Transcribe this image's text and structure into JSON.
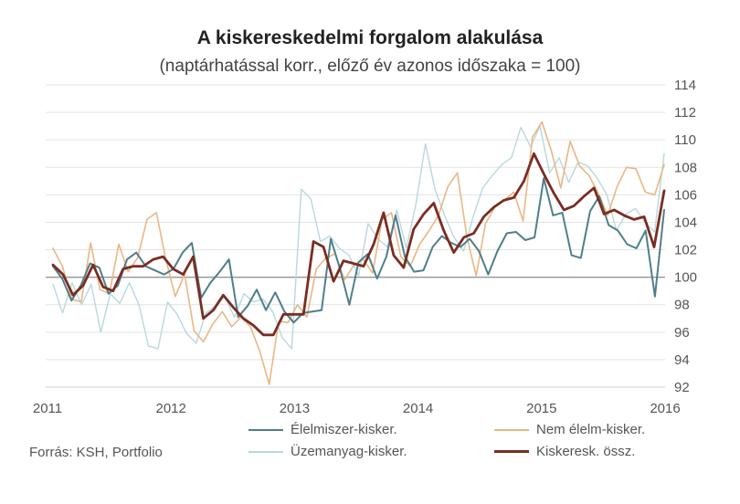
{
  "title": "A kiskereskedelmi forgalom alakulása",
  "subtitle": "(naptárhatással korr., előző év azonos időszaka = 100)",
  "source": "Forrás: KSH, Portfolio",
  "chart_data": {
    "type": "line",
    "ylim": [
      92,
      114
    ],
    "yticks": [
      "114",
      "112",
      "110",
      "108",
      "106",
      "104",
      "102",
      "100",
      "98",
      "96",
      "94",
      "92"
    ],
    "xticks": [
      "2011",
      "2012",
      "2013",
      "2014",
      "2015",
      "2016"
    ],
    "grid": true,
    "legend_position": "bottom",
    "series": [
      {
        "name": "Élelmiszer-kisker.",
        "color": "#4f7f8a",
        "width": 2,
        "values": [
          100.8,
          99.9,
          98.3,
          99.4,
          101.0,
          100.7,
          98.8,
          99.4,
          101.3,
          101.8,
          100.8,
          100.5,
          100.2,
          100.6,
          101.8,
          102.5,
          98.5,
          99.6,
          100.4,
          101.3,
          97.1,
          97.9,
          99.1,
          97.6,
          98.9,
          97.5,
          96.7,
          97.4,
          97.5,
          97.6,
          102.8,
          100.6,
          98.0,
          101.1,
          101.7,
          99.9,
          101.5,
          104.5,
          101.5,
          100.4,
          100.5,
          102.2,
          103.0,
          102.5,
          102.2,
          102.8,
          101.9,
          100.2,
          101.9,
          103.2,
          103.3,
          102.7,
          102.9,
          107.2,
          104.5,
          104.7,
          101.6,
          101.4,
          104.8,
          105.9,
          103.8,
          103.4,
          102.4,
          102.1,
          103.4,
          98.6,
          104.9
        ]
      },
      {
        "name": "Nem élelm-kisker.",
        "color": "#e9b784",
        "width": 1.6,
        "values": [
          102.1,
          100.8,
          98.4,
          98.2,
          102.5,
          99.1,
          98.8,
          102.4,
          100.4,
          101.4,
          104.2,
          104.7,
          101.3,
          98.6,
          100.2,
          96.1,
          95.3,
          96.6,
          97.5,
          96.4,
          97.1,
          96.4,
          94.6,
          92.2,
          96.8,
          96.7,
          98.0,
          97.1,
          100.6,
          101.4,
          101.7,
          99.8,
          100.9,
          101.3,
          100.3,
          104.2,
          104.7,
          101.5,
          100.8,
          102.4,
          103.4,
          104.5,
          106.6,
          107.6,
          103.0,
          100.1,
          103.9,
          105.1,
          105.6,
          106.2,
          104.1,
          110.2,
          111.3,
          109.2,
          106.5,
          109.9,
          108.1,
          107.4,
          106.1,
          104.5,
          106.6,
          108.0,
          107.9,
          106.2,
          106.0,
          108.2
        ]
      },
      {
        "name": "Üzemanyag-kisker.",
        "color": "#b8d8e0",
        "width": 1.4,
        "values": [
          99.5,
          97.4,
          99.6,
          98.0,
          99.5,
          96.0,
          98.8,
          98.1,
          99.6,
          98.0,
          95.0,
          94.8,
          98.2,
          97.3,
          95.9,
          95.2,
          97.4,
          97.9,
          98.6,
          97.1,
          98.8,
          98.2,
          98.4,
          97.5,
          95.6,
          94.8,
          106.4,
          105.7,
          102.6,
          103.0,
          102.1,
          101.6,
          100.1,
          103.9,
          102.8,
          102.2,
          104.9,
          102.1,
          105.3,
          109.7,
          106.4,
          104.5,
          102.9,
          101.9,
          104.4,
          106.5,
          107.4,
          108.2,
          108.7,
          110.9,
          109.5,
          111.0,
          107.6,
          108.7,
          106.9,
          108.4,
          108.1,
          107.2,
          106.0,
          103.4,
          104.6,
          105.0,
          104.0,
          103.3,
          109.0
        ]
      },
      {
        "name": "Kiskeresk. össz.",
        "color": "#7a2d22",
        "width": 2.8,
        "values": [
          100.9,
          100.2,
          98.7,
          99.4,
          100.9,
          99.3,
          99.0,
          100.6,
          100.8,
          100.8,
          101.3,
          101.5,
          100.6,
          100.2,
          101.5,
          97.0,
          97.6,
          98.7,
          97.8,
          97.0,
          96.5,
          95.8,
          95.8,
          97.3,
          97.3,
          97.3,
          102.6,
          102.2,
          99.7,
          101.2,
          101.0,
          100.8,
          102.4,
          104.7,
          101.6,
          100.7,
          103.5,
          104.6,
          105.4,
          103.4,
          101.8,
          102.9,
          103.2,
          104.4,
          105.1,
          105.6,
          105.8,
          107.0,
          109.0,
          107.5,
          106.1,
          104.9,
          105.2,
          105.9,
          106.5,
          104.6,
          104.9,
          104.5,
          104.2,
          104.4,
          102.2,
          106.3
        ]
      }
    ]
  }
}
